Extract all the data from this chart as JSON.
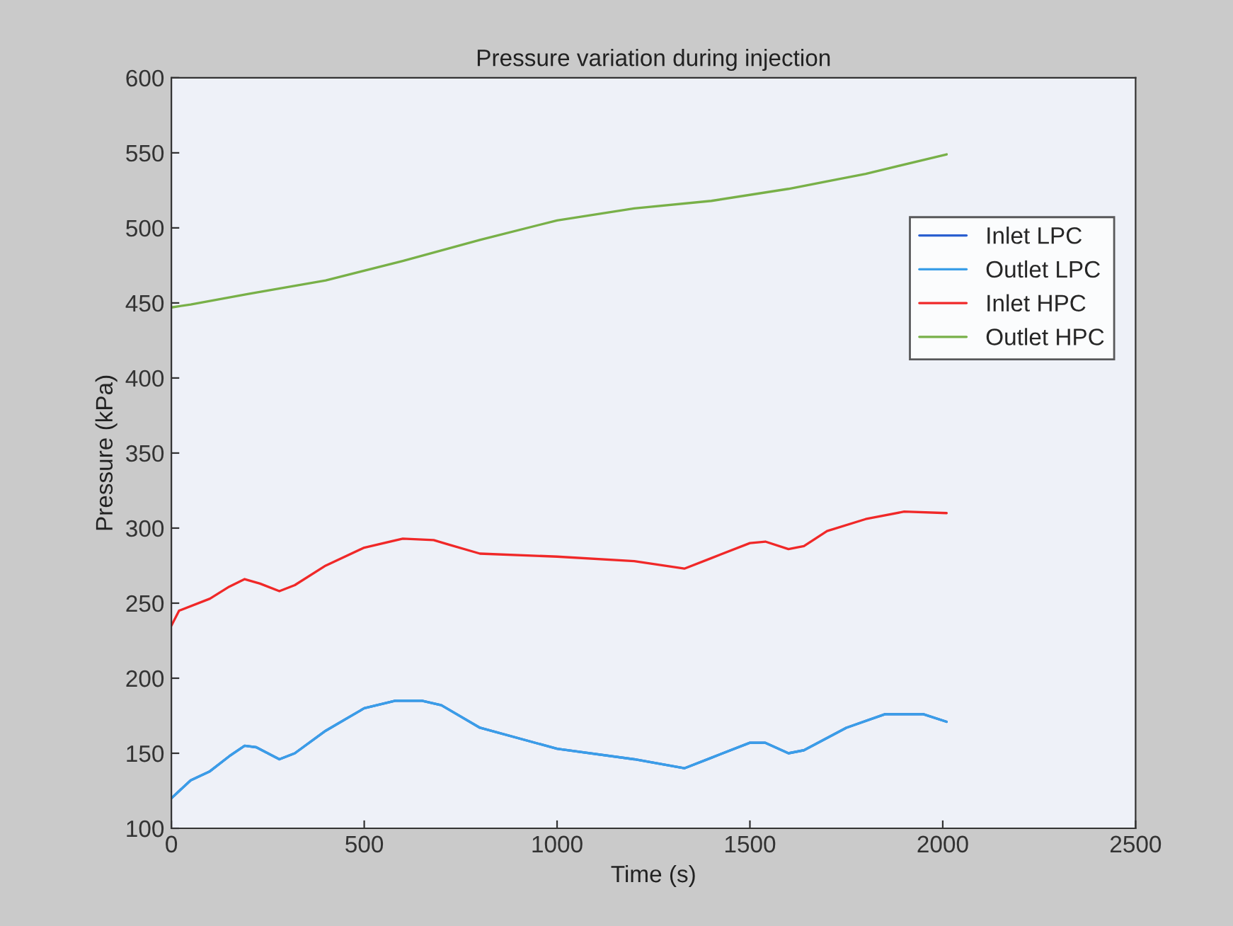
{
  "chart_data": {
    "type": "line",
    "title": "Pressure variation during injection",
    "xlabel": "Time (s)",
    "ylabel": "Pressure (kPa)",
    "x": [
      0,
      50,
      100,
      150,
      190,
      220,
      280,
      320,
      400,
      500,
      580,
      650,
      700,
      800,
      1000,
      1200,
      1330,
      1400,
      1500,
      1540,
      1600,
      1640,
      1750,
      1850,
      1950,
      2010
    ],
    "series": [
      {
        "name": "Inlet LPC",
        "color": "#2a5fd0",
        "values": [
          120,
          132,
          138,
          148,
          155,
          154,
          146,
          150,
          165,
          180,
          185,
          185,
          182,
          167,
          153,
          146,
          140,
          147,
          157,
          157,
          150,
          152,
          167,
          176,
          176,
          171
        ]
      },
      {
        "name": "Outlet LPC",
        "color": "#3a9ee8",
        "values": [
          120,
          132,
          138,
          148,
          155,
          154,
          146,
          150,
          165,
          180,
          185,
          185,
          182,
          167,
          153,
          146,
          140,
          147,
          157,
          157,
          150,
          152,
          167,
          176,
          176,
          171
        ]
      },
      {
        "name": "Inlet HPC",
        "color": "#f02828",
        "x": [
          0,
          20,
          100,
          150,
          190,
          230,
          280,
          320,
          400,
          500,
          600,
          680,
          720,
          800,
          1000,
          1200,
          1330,
          1400,
          1500,
          1540,
          1600,
          1640,
          1700,
          1800,
          1900,
          2010
        ],
        "values": [
          235,
          245,
          253,
          261,
          266,
          263,
          258,
          262,
          275,
          287,
          293,
          292,
          289,
          283,
          281,
          278,
          273,
          280,
          290,
          291,
          286,
          288,
          298,
          306,
          311,
          310
        ]
      },
      {
        "name": "Outlet HPC",
        "color": "#78b048",
        "x": [
          0,
          50,
          200,
          400,
          600,
          800,
          1000,
          1200,
          1400,
          1600,
          1800,
          2010
        ],
        "values": [
          447,
          449,
          456,
          465,
          478,
          492,
          505,
          513,
          518,
          526,
          536,
          549
        ]
      }
    ],
    "xlim": [
      0,
      2500
    ],
    "xticks": [
      0,
      500,
      1000,
      1500,
      2000,
      2500
    ],
    "ylim": [
      100,
      600
    ],
    "yticks": [
      100,
      150,
      200,
      250,
      300,
      350,
      400,
      450,
      500,
      550,
      600
    ],
    "grid": false,
    "legend": "top right"
  }
}
